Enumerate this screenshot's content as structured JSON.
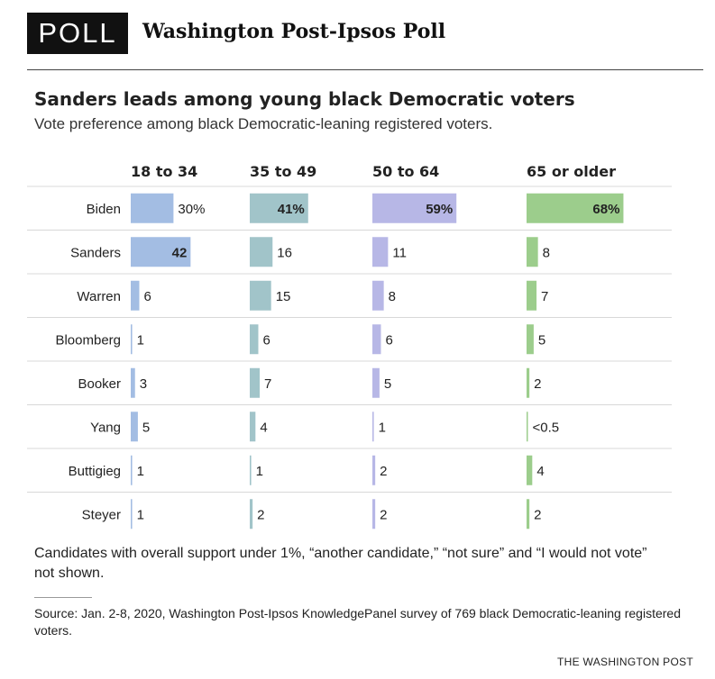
{
  "header": {
    "badge": "POLL",
    "name": "Washington Post-Ipsos Poll"
  },
  "chart_data": {
    "type": "bar",
    "title": "Sanders leads among young black Democratic voters",
    "subtitle": "Vote preference among black Democratic-leaning registered voters.",
    "xlim": [
      0,
      100
    ],
    "categories": [
      "Biden",
      "Sanders",
      "Warren",
      "Bloomberg",
      "Booker",
      "Yang",
      "Buttigieg",
      "Steyer"
    ],
    "series": [
      {
        "name": "18 to 34",
        "color": "#a3bde3",
        "values": [
          30,
          42,
          6,
          1,
          3,
          5,
          1,
          1
        ],
        "labels": [
          "30%",
          "42",
          "6",
          "1",
          "3",
          "5",
          "1",
          "1"
        ]
      },
      {
        "name": "35 to 49",
        "color": "#a1c4c9",
        "values": [
          41,
          16,
          15,
          6,
          7,
          4,
          1,
          2
        ],
        "labels": [
          "41%",
          "16",
          "15",
          "6",
          "7",
          "4",
          "1",
          "2"
        ]
      },
      {
        "name": "50 to 64",
        "color": "#b7b7e6",
        "values": [
          59,
          11,
          8,
          6,
          5,
          1,
          2,
          2
        ],
        "labels": [
          "59%",
          "11",
          "8",
          "6",
          "5",
          "1",
          "2",
          "2"
        ]
      },
      {
        "name": "65 or older",
        "color": "#9ccd8c",
        "values": [
          68,
          8,
          7,
          5,
          2,
          0.3,
          4,
          2
        ],
        "labels": [
          "68%",
          "8",
          "7",
          "5",
          "2",
          "<0.5",
          "4",
          "2"
        ]
      }
    ]
  },
  "note": "Candidates with overall support under 1%, “another candidate,” “not sure” and “I would not vote” not shown.",
  "source": "Source: Jan. 2-8, 2020, Washington Post-Ipsos KnowledgePanel survey of 769 black Democratic-leaning registered voters.",
  "credit": "THE WASHINGTON POST"
}
